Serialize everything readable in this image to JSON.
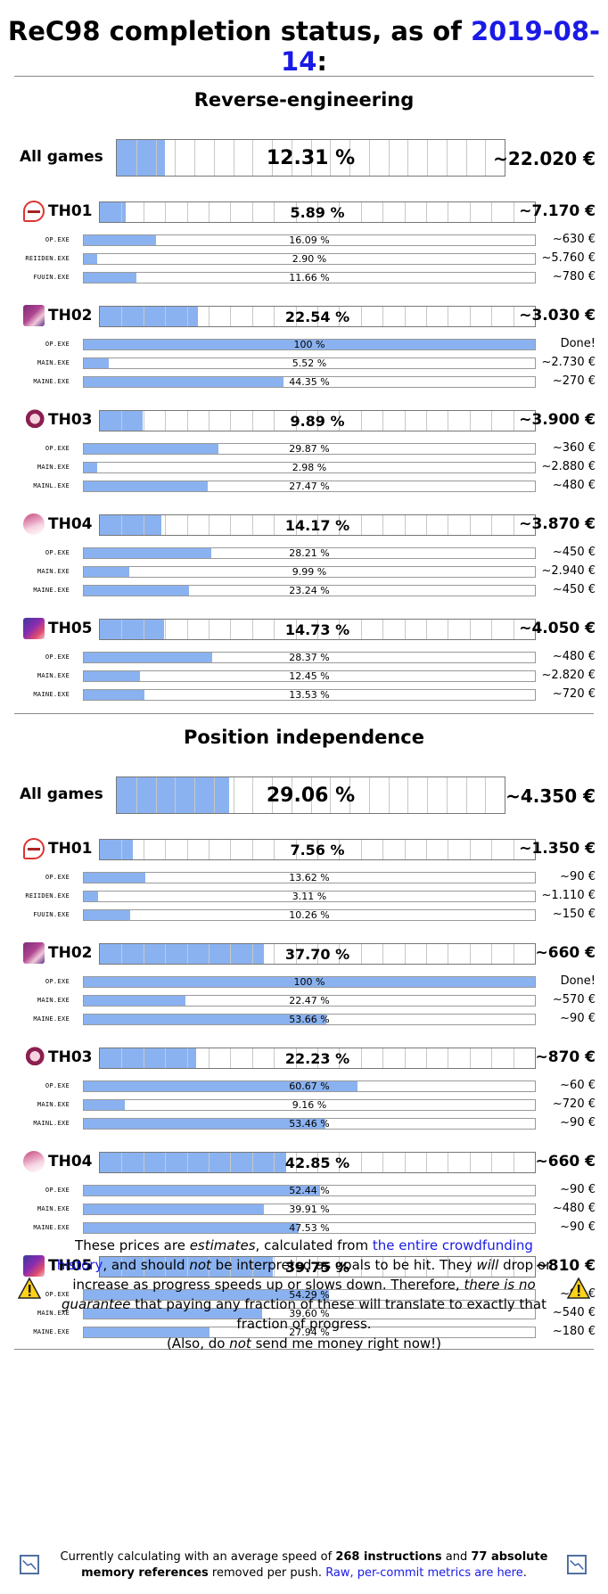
{
  "header": {
    "title_prefix": "ReC98 completion status, as of ",
    "date": "2019-08-14",
    "title_suffix": ":"
  },
  "sections": [
    {
      "title": "Reverse-engineering",
      "all_games": {
        "label": "All games",
        "percent": 12.31,
        "percent_text": "12.31 %",
        "price": "~22.020 €"
      },
      "games": [
        {
          "name": "TH01",
          "icon": "th01-logo-icon",
          "percent": 5.89,
          "percent_text": "5.89 %",
          "price": "~7.170 €",
          "exes": [
            {
              "name": "OP.EXE",
              "percent": 16.09,
              "percent_text": "16.09 %",
              "price": "~630 €"
            },
            {
              "name": "REIIDEN.EXE",
              "percent": 2.9,
              "percent_text": "2.90 %",
              "price": "~5.760 €"
            },
            {
              "name": "FUUIN.EXE",
              "percent": 11.66,
              "percent_text": "11.66 %",
              "price": "~780 €"
            }
          ]
        },
        {
          "name": "TH02",
          "icon": "th02-character-icon",
          "percent": 22.54,
          "percent_text": "22.54 %",
          "price": "~3.030 €",
          "exes": [
            {
              "name": "OP.EXE",
              "percent": 100,
              "percent_text": "100 %",
              "price": "Done!"
            },
            {
              "name": "MAIN.EXE",
              "percent": 5.52,
              "percent_text": "5.52 %",
              "price": "~2.730 €"
            },
            {
              "name": "MAINE.EXE",
              "percent": 44.35,
              "percent_text": "44.35 %",
              "price": "~270 €"
            }
          ]
        },
        {
          "name": "TH03",
          "icon": "th03-character-icon",
          "percent": 9.89,
          "percent_text": "9.89 %",
          "price": "~3.900 €",
          "exes": [
            {
              "name": "OP.EXE",
              "percent": 29.87,
              "percent_text": "29.87 %",
              "price": "~360 €"
            },
            {
              "name": "MAIN.EXE",
              "percent": 2.98,
              "percent_text": "2.98 %",
              "price": "~2.880 €"
            },
            {
              "name": "MAINL.EXE",
              "percent": 27.47,
              "percent_text": "27.47 %",
              "price": "~480 €"
            }
          ]
        },
        {
          "name": "TH04",
          "icon": "th04-character-icon",
          "percent": 14.17,
          "percent_text": "14.17 %",
          "price": "~3.870 €",
          "exes": [
            {
              "name": "OP.EXE",
              "percent": 28.21,
              "percent_text": "28.21 %",
              "price": "~450 €"
            },
            {
              "name": "MAIN.EXE",
              "percent": 9.99,
              "percent_text": "9.99 %",
              "price": "~2.940 €"
            },
            {
              "name": "MAINE.EXE",
              "percent": 23.24,
              "percent_text": "23.24 %",
              "price": "~450 €"
            }
          ]
        },
        {
          "name": "TH05",
          "icon": "th05-character-icon",
          "percent": 14.73,
          "percent_text": "14.73 %",
          "price": "~4.050 €",
          "exes": [
            {
              "name": "OP.EXE",
              "percent": 28.37,
              "percent_text": "28.37 %",
              "price": "~480 €"
            },
            {
              "name": "MAIN.EXE",
              "percent": 12.45,
              "percent_text": "12.45 %",
              "price": "~2.820 €"
            },
            {
              "name": "MAINE.EXE",
              "percent": 13.53,
              "percent_text": "13.53 %",
              "price": "~720 €"
            }
          ]
        }
      ]
    },
    {
      "title": "Position independence",
      "all_games": {
        "label": "All games",
        "percent": 29.06,
        "percent_text": "29.06 %",
        "price": "~4.350 €"
      },
      "games": [
        {
          "name": "TH01",
          "icon": "th01-logo-icon",
          "percent": 7.56,
          "percent_text": "7.56 %",
          "price": "~1.350 €",
          "exes": [
            {
              "name": "OP.EXE",
              "percent": 13.62,
              "percent_text": "13.62 %",
              "price": "~90 €"
            },
            {
              "name": "REIIDEN.EXE",
              "percent": 3.11,
              "percent_text": "3.11 %",
              "price": "~1.110 €"
            },
            {
              "name": "FUUIN.EXE",
              "percent": 10.26,
              "percent_text": "10.26 %",
              "price": "~150 €"
            }
          ]
        },
        {
          "name": "TH02",
          "icon": "th02-character-icon",
          "percent": 37.7,
          "percent_text": "37.70 %",
          "price": "~660 €",
          "exes": [
            {
              "name": "OP.EXE",
              "percent": 100,
              "percent_text": "100 %",
              "price": "Done!"
            },
            {
              "name": "MAIN.EXE",
              "percent": 22.47,
              "percent_text": "22.47 %",
              "price": "~570 €"
            },
            {
              "name": "MAINE.EXE",
              "percent": 53.66,
              "percent_text": "53.66 %",
              "price": "~90 €"
            }
          ]
        },
        {
          "name": "TH03",
          "icon": "th03-character-icon",
          "percent": 22.23,
          "percent_text": "22.23 %",
          "price": "~870 €",
          "exes": [
            {
              "name": "OP.EXE",
              "percent": 60.67,
              "percent_text": "60.67 %",
              "price": "~60 €"
            },
            {
              "name": "MAIN.EXE",
              "percent": 9.16,
              "percent_text": "9.16 %",
              "price": "~720 €"
            },
            {
              "name": "MAINL.EXE",
              "percent": 53.46,
              "percent_text": "53.46 %",
              "price": "~90 €"
            }
          ]
        },
        {
          "name": "TH04",
          "icon": "th04-character-icon",
          "percent": 42.85,
          "percent_text": "42.85 %",
          "price": "~660 €",
          "exes": [
            {
              "name": "OP.EXE",
              "percent": 52.44,
              "percent_text": "52.44 %",
              "price": "~90 €"
            },
            {
              "name": "MAIN.EXE",
              "percent": 39.91,
              "percent_text": "39.91 %",
              "price": "~480 €"
            },
            {
              "name": "MAINE.EXE",
              "percent": 47.53,
              "percent_text": "47.53 %",
              "price": "~90 €"
            }
          ]
        },
        {
          "name": "TH05",
          "icon": "th05-character-icon",
          "percent": 39.75,
          "percent_text": "39.75 %",
          "price": "~810 €",
          "exes": [
            {
              "name": "OP.EXE",
              "percent": 54.29,
              "percent_text": "54.29 %",
              "price": "~90 €"
            },
            {
              "name": "MAIN.EXE",
              "percent": 39.6,
              "percent_text": "39.60 %",
              "price": "~540 €"
            },
            {
              "name": "MAINE.EXE",
              "percent": 27.94,
              "percent_text": "27.94 %",
              "price": "~180 €"
            }
          ]
        }
      ]
    }
  ],
  "disclaimer": {
    "p1": "These prices are ",
    "p1_em": "estimates",
    "p2": ", calculated from ",
    "link": "the entire crowdfunding history",
    "p3": ", and should ",
    "p3_em": "not",
    "p4": " be interpreted as goals to be hit. They ",
    "p4_em": "will",
    "p5": " drop or increase as progress speeds up or slows down. Therefore, ",
    "p5_em": "there is no guarantee",
    "p6": " that paying any fraction of these will translate to exactly that fraction of progress.",
    "line2_a": "(Also, do ",
    "line2_em": "not",
    "line2_b": " send me money right now!)",
    "icon": "warning-icon"
  },
  "footer": {
    "a": "Currently calculating with an average speed of ",
    "instr": "268 instructions",
    "b": " and ",
    "mem": "77 absolute memory references",
    "c": " removed per push. ",
    "link": "Raw, per-commit metrics are here",
    "d": ".",
    "icon": "line-chart-icon"
  },
  "colors": {
    "bar_fill": "#8ab2f0",
    "link": "#1a1ae6"
  }
}
